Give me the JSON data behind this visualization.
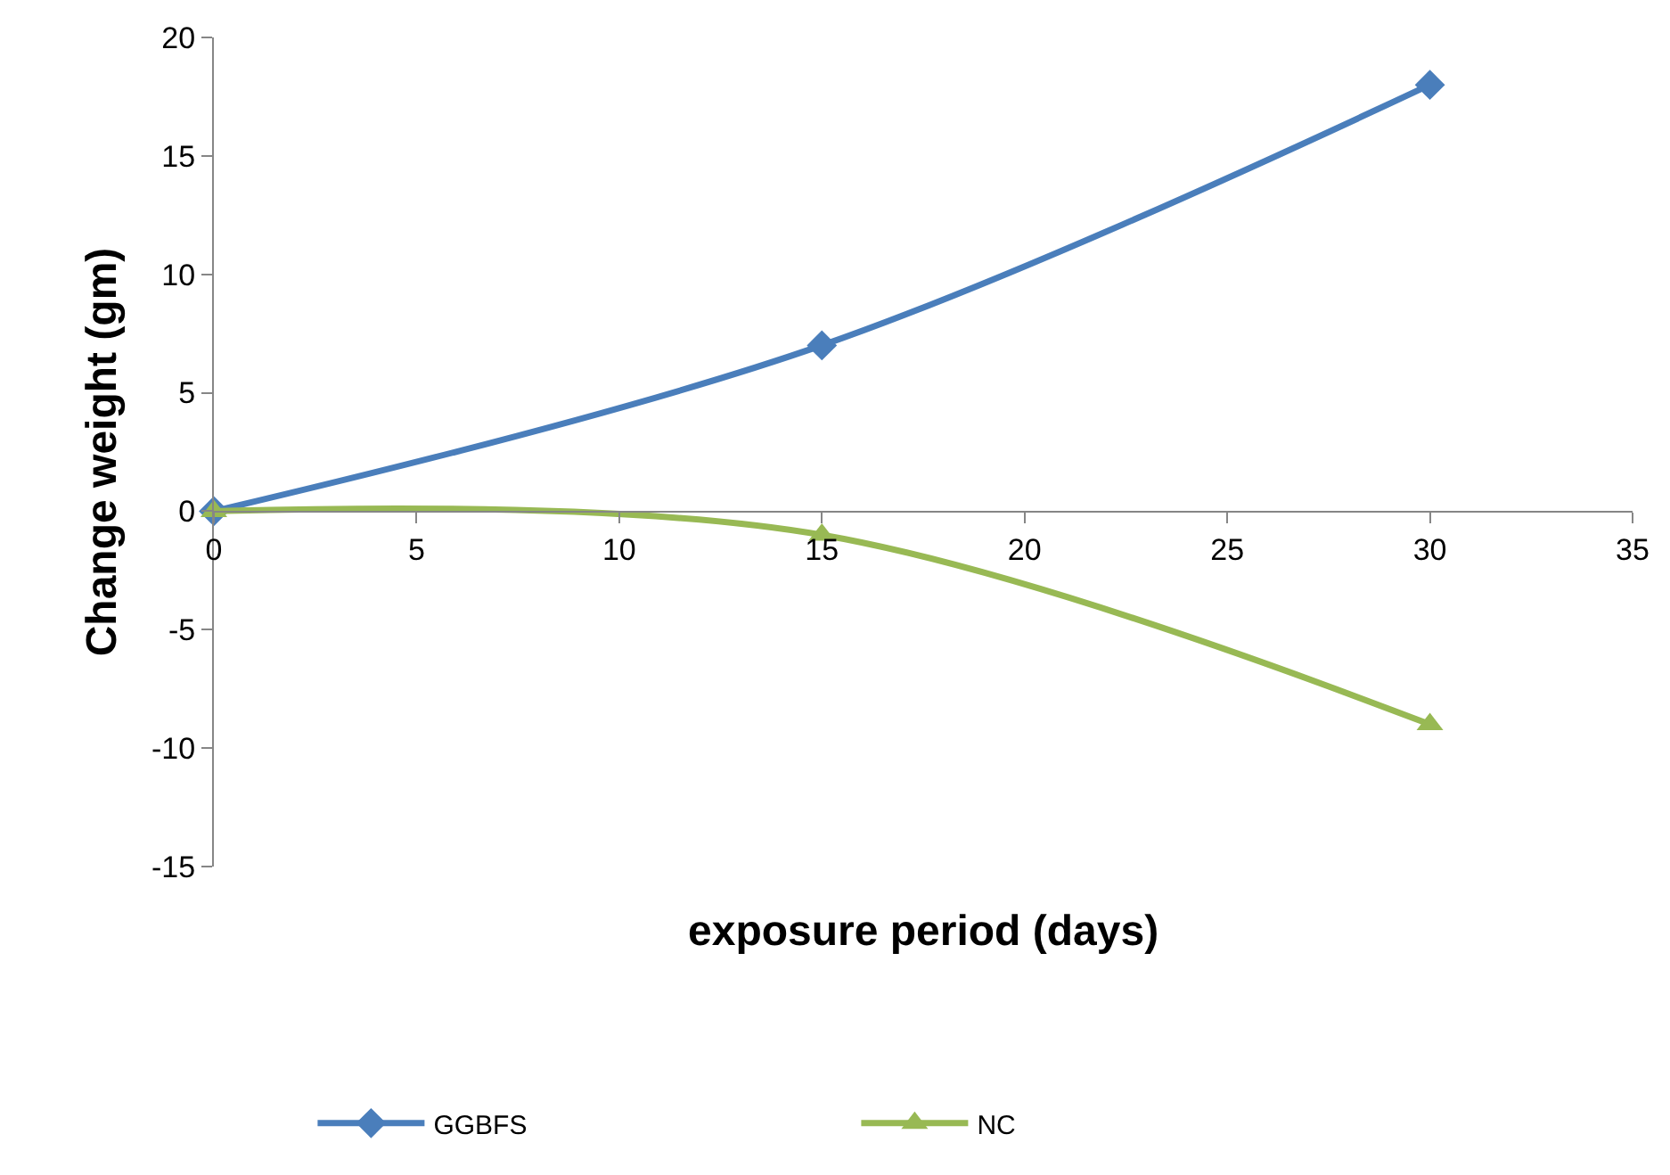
{
  "chart_data": {
    "type": "line",
    "xlabel": "exposure period (days)",
    "ylabel": "Change weight (gm)",
    "x": [
      0,
      15,
      30
    ],
    "series": [
      {
        "name": "GGBFS",
        "color": "#4a7ebb",
        "values": [
          0,
          7,
          18
        ],
        "marker": "diamond"
      },
      {
        "name": "NC",
        "color": "#98b954",
        "values": [
          0,
          -1,
          -9
        ],
        "marker": "triangle"
      }
    ],
    "xlim": [
      0,
      35
    ],
    "xticks": [
      0,
      5,
      10,
      15,
      20,
      25,
      30,
      35
    ],
    "ylim": [
      -15,
      20
    ],
    "yticks": [
      -15,
      -10,
      -5,
      0,
      5,
      10,
      15,
      20
    ],
    "legend": "bottom"
  }
}
